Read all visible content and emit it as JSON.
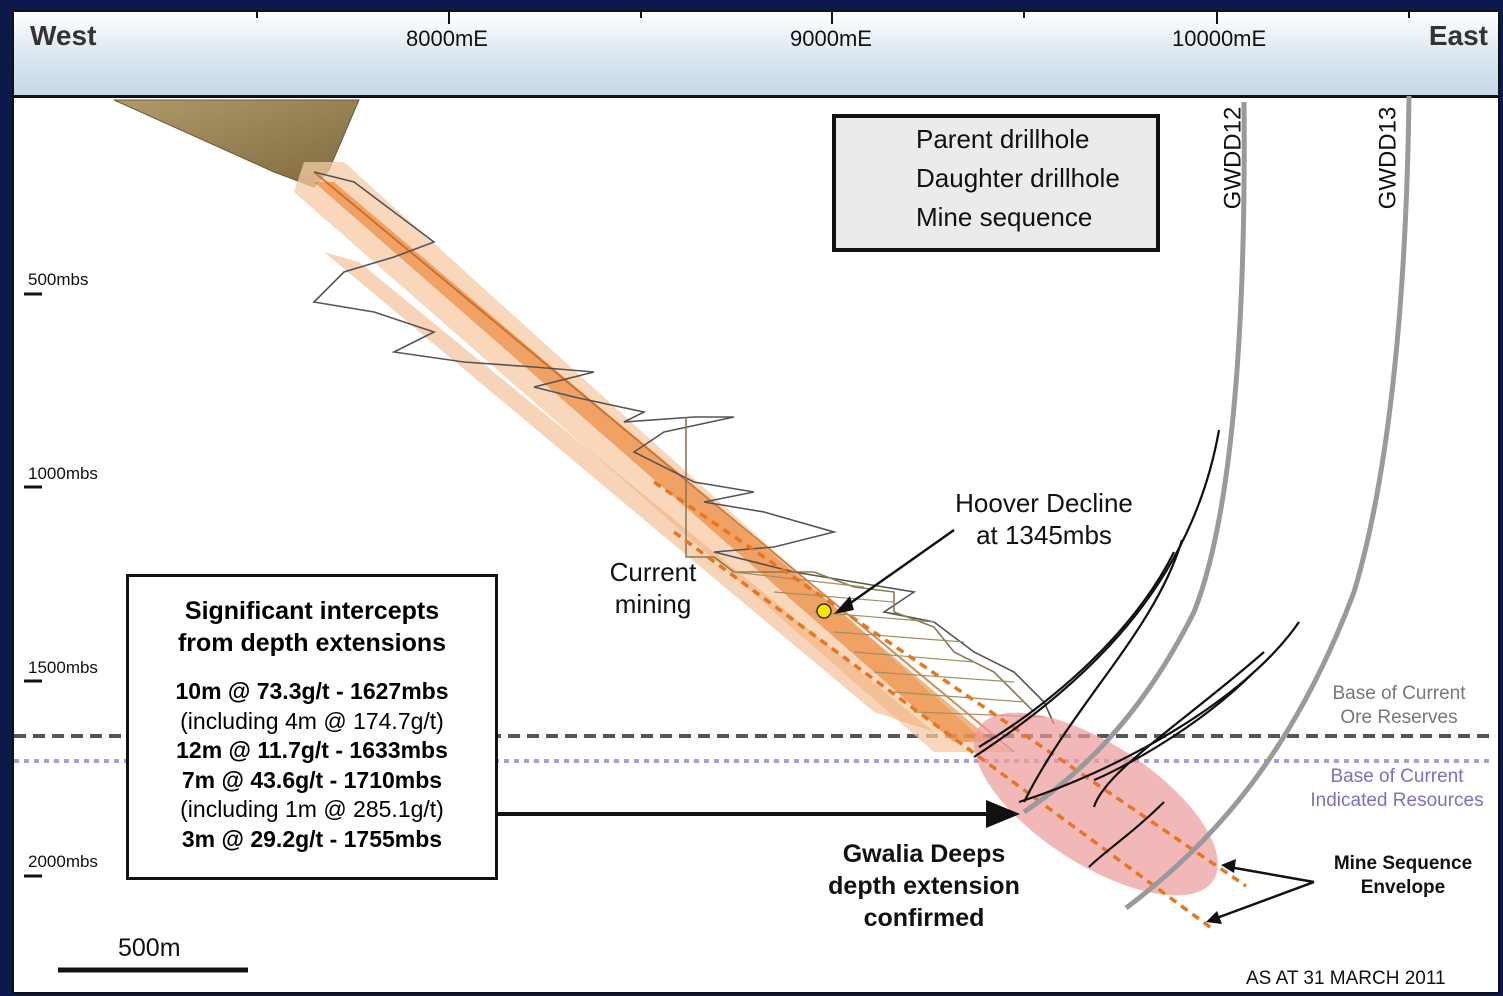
{
  "header": {
    "west": "West",
    "east": "East",
    "easting_ticks": [
      "8000mE",
      "9000mE",
      "10000mE"
    ]
  },
  "depth_ticks": [
    "500mbs",
    "1000mbs",
    "1500mbs",
    "2000mbs"
  ],
  "legend": {
    "parent": "Parent drillhole",
    "daughter": "Daughter drillhole",
    "mine_sequence": "Mine sequence"
  },
  "drillholes": [
    "GWDD12",
    "GWDD13"
  ],
  "labels": {
    "current_mining_1": "Current",
    "current_mining_2": "mining",
    "hoover_1": "Hoover Decline",
    "hoover_2": "at 1345mbs",
    "ore_reserves_1": "Base of Current",
    "ore_reserves_2": "Ore Reserves",
    "indicated_1": "Base of Current",
    "indicated_2": "Indicated Resources",
    "envelope_1": "Mine Sequence",
    "envelope_2": "Envelope",
    "deeps_1": "Gwalia Deeps",
    "deeps_2": "depth extension",
    "deeps_3": "confirmed",
    "scale": "500m",
    "date": "AS AT 31 MARCH 2011"
  },
  "intercepts": {
    "title_1": "Significant intercepts",
    "title_2": "from depth extensions",
    "lines": [
      "10m @ 73.3g/t - 1627mbs",
      "(including 4m @ 174.7g/t)",
      "12m @ 11.7g/t - 1633mbs",
      "7m @ 43.6g/t - 1710mbs",
      "(including 1m @ 285.1g/t)",
      "3m @ 29.2g/t - 1755mbs"
    ]
  },
  "colors": {
    "ore_reserves_line": "#555555",
    "indicated_line": "#a8a0d8",
    "mine_sequence": "#e8761e",
    "target_zone": "#ec9a9a",
    "parent_hole": "#9a9a9a",
    "daughter_hole": "#111111"
  }
}
